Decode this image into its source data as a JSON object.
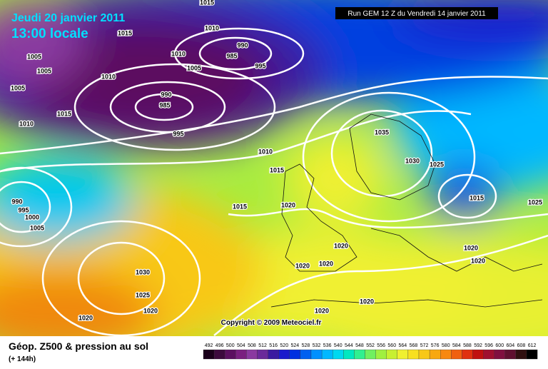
{
  "header": {
    "date": "Jeudi 20 janvier 2011",
    "time": "13:00 locale",
    "run": "Run GEM 12 Z du Vendredi 14 janvier 2011"
  },
  "isobar_labels": [
    1015,
    1010,
    1015,
    990,
    985,
    1010,
    1005,
    995,
    1010,
    990,
    985,
    995,
    1005,
    1005,
    1005,
    1015,
    1010,
    1010,
    1015,
    1035,
    1030,
    1025,
    1015,
    1025,
    1015,
    1020,
    990,
    995,
    1000,
    1005,
    1030,
    1025,
    1020,
    1020,
    1020,
    1020,
    1020,
    1020,
    1020,
    1020,
    1020
  ],
  "copyright": "Copyright © 2009 Meteociel.fr",
  "footer": {
    "title": "Géop. Z500 & pression au sol",
    "subtitle": "(+ 144h)"
  },
  "scale": [
    {
      "value": 492,
      "color": "#1a001a"
    },
    {
      "value": 496,
      "color": "#3d0a3d"
    },
    {
      "value": 500,
      "color": "#5c1060"
    },
    {
      "value": 504,
      "color": "#7a2080"
    },
    {
      "value": 508,
      "color": "#8a3aa0"
    },
    {
      "value": 512,
      "color": "#6a2a9a"
    },
    {
      "value": 516,
      "color": "#3a1aa0"
    },
    {
      "value": 520,
      "color": "#1a1acc"
    },
    {
      "value": 524,
      "color": "#0030e0"
    },
    {
      "value": 528,
      "color": "#0060f0"
    },
    {
      "value": 532,
      "color": "#0090ff"
    },
    {
      "value": 536,
      "color": "#00b8ff"
    },
    {
      "value": 540,
      "color": "#00d8f0"
    },
    {
      "value": 544,
      "color": "#00e8c0"
    },
    {
      "value": 548,
      "color": "#30f090"
    },
    {
      "value": 552,
      "color": "#70f060"
    },
    {
      "value": 556,
      "color": "#a0f040"
    },
    {
      "value": 560,
      "color": "#c8f030"
    },
    {
      "value": 564,
      "color": "#f0f030"
    },
    {
      "value": 568,
      "color": "#f8e020"
    },
    {
      "value": 572,
      "color": "#f8c818"
    },
    {
      "value": 576,
      "color": "#f8a810"
    },
    {
      "value": 580,
      "color": "#f88810"
    },
    {
      "value": 584,
      "color": "#f06010"
    },
    {
      "value": 588,
      "color": "#e03010"
    },
    {
      "value": 592,
      "color": "#c01010"
    },
    {
      "value": 596,
      "color": "#a01030"
    },
    {
      "value": 600,
      "color": "#801040"
    },
    {
      "value": 604,
      "color": "#601030"
    },
    {
      "value": 608,
      "color": "#301010"
    },
    {
      "value": 612,
      "color": "#000000"
    }
  ]
}
